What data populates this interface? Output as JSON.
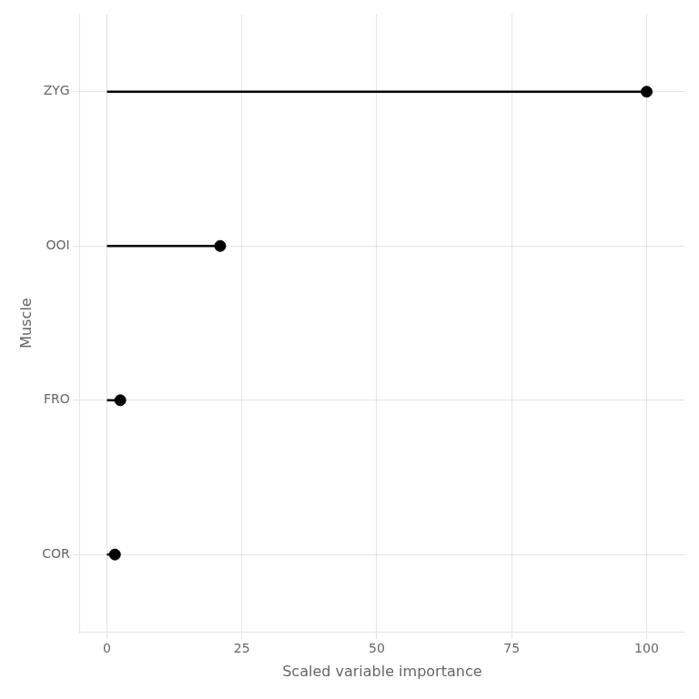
{
  "chart_data": {
    "type": "lollipop",
    "orientation": "horizontal",
    "categories": [
      "COR",
      "FRO",
      "OOI",
      "ZYG"
    ],
    "values": [
      1.5,
      2.5,
      21.0,
      100.0
    ],
    "color": "#000000",
    "xlabel": "Scaled variable importance",
    "ylabel": "Muscle",
    "xlim": [
      -5,
      107
    ],
    "xticks": [
      0,
      25,
      50,
      75,
      100
    ],
    "grid": true
  }
}
